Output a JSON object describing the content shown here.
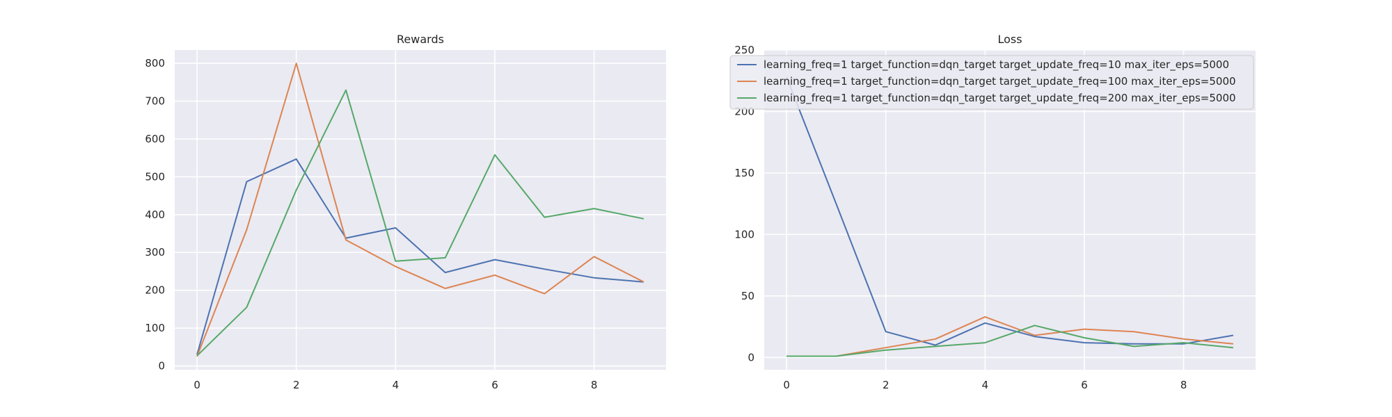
{
  "colors": {
    "panel_bg": "#eaeaf2",
    "grid": "#ffffff",
    "text": "#262626",
    "series": [
      "#4c72b0",
      "#dd8452",
      "#55a868"
    ]
  },
  "legend": {
    "entries": [
      "learning_freq=1 target_function=dqn_target target_update_freq=10 max_iter_eps=5000",
      "learning_freq=1 target_function=dqn_target target_update_freq=100 max_iter_eps=5000",
      "learning_freq=1 target_function=dqn_target target_update_freq=200 max_iter_eps=5000"
    ]
  },
  "chart_data": [
    {
      "type": "line",
      "title": "Rewards",
      "xlabel": "",
      "ylabel": "",
      "x": [
        0,
        1,
        2,
        3,
        4,
        5,
        6,
        7,
        8,
        9
      ],
      "xlim": [
        -0.45,
        9.45
      ],
      "ylim": [
        -10,
        835
      ],
      "xticks": [
        0,
        2,
        4,
        6,
        8
      ],
      "yticks": [
        0,
        100,
        200,
        300,
        400,
        500,
        600,
        700,
        800
      ],
      "grid": true,
      "series": [
        {
          "name": "learning_freq=1 target_function=dqn_target target_update_freq=10 max_iter_eps=5000",
          "values": [
            30,
            487,
            547,
            338,
            365,
            247,
            281,
            256,
            233,
            222
          ]
        },
        {
          "name": "learning_freq=1 target_function=dqn_target target_update_freq=100 max_iter_eps=5000",
          "values": [
            25,
            360,
            800,
            333,
            263,
            205,
            240,
            191,
            289,
            222
          ]
        },
        {
          "name": "learning_freq=1 target_function=dqn_target target_update_freq=200 max_iter_eps=5000",
          "values": [
            27,
            155,
            465,
            729,
            277,
            286,
            558,
            393,
            416,
            389
          ]
        }
      ]
    },
    {
      "type": "line",
      "title": "Loss",
      "xlabel": "",
      "ylabel": "",
      "x": [
        0,
        1,
        2,
        3,
        4,
        5,
        6,
        7,
        8,
        9
      ],
      "xlim": [
        -0.45,
        9.45
      ],
      "ylim": [
        -10,
        250
      ],
      "xticks": [
        0,
        2,
        4,
        6,
        8
      ],
      "yticks": [
        0,
        50,
        100,
        150,
        200,
        250
      ],
      "grid": true,
      "legend_position": "top-right",
      "series": [
        {
          "name": "learning_freq=1 target_function=dqn_target target_update_freq=10 max_iter_eps=5000",
          "values": [
            228,
            125,
            21,
            10,
            28,
            17,
            12,
            11,
            11,
            18
          ]
        },
        {
          "name": "learning_freq=1 target_function=dqn_target target_update_freq=100 max_iter_eps=5000",
          "values": [
            1,
            1,
            8,
            15,
            33,
            18,
            23,
            21,
            15,
            11
          ]
        },
        {
          "name": "learning_freq=1 target_function=dqn_target target_update_freq=200 max_iter_eps=5000",
          "values": [
            1,
            1,
            6,
            9,
            12,
            26,
            16,
            9,
            12,
            8
          ]
        }
      ]
    }
  ]
}
